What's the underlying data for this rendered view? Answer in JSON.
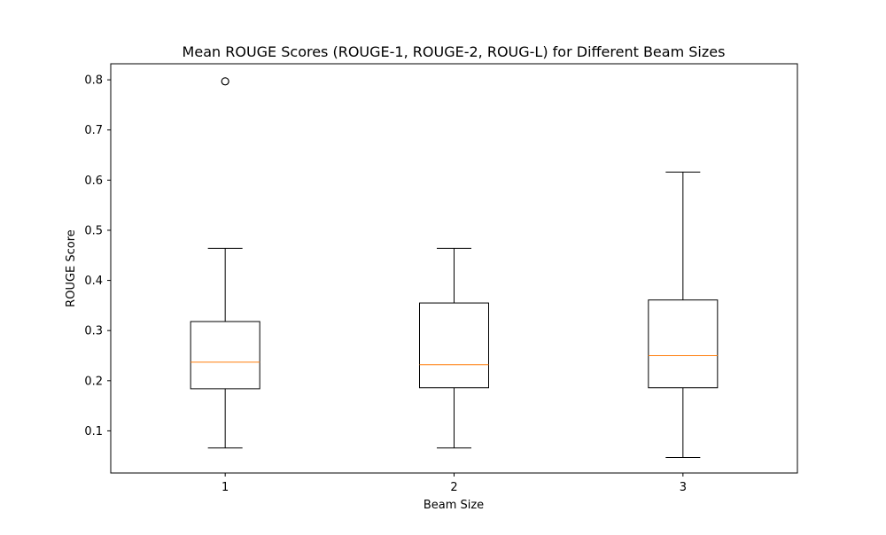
{
  "chart_data": {
    "type": "boxplot",
    "title": "Mean ROUGE Scores (ROUGE-1, ROUGE-2, ROUG-L) for Different Beam Sizes",
    "xlabel": "Beam Size",
    "ylabel": "ROUGE Score",
    "categories": [
      "1",
      "2",
      "3"
    ],
    "ylim": [
      0.016,
      0.832
    ],
    "yticks": [
      0.1,
      0.2,
      0.3,
      0.4,
      0.5,
      0.6,
      0.7,
      0.8
    ],
    "ytick_labels": [
      "0.1",
      "0.2",
      "0.3",
      "0.4",
      "0.5",
      "0.6",
      "0.7",
      "0.8"
    ],
    "grid": false,
    "boxes": [
      {
        "category": "1",
        "whisker_low": 0.066,
        "q1": 0.184,
        "median": 0.237,
        "q3": 0.318,
        "whisker_high": 0.464,
        "outliers": [
          0.797
        ]
      },
      {
        "category": "2",
        "whisker_low": 0.066,
        "q1": 0.186,
        "median": 0.232,
        "q3": 0.355,
        "whisker_high": 0.464,
        "outliers": []
      },
      {
        "category": "3",
        "whisker_low": 0.047,
        "q1": 0.186,
        "median": 0.25,
        "q3": 0.361,
        "whisker_high": 0.616,
        "outliers": []
      }
    ],
    "colors": {
      "box": "#000000",
      "median": "#ff7f0e",
      "background": "#ffffff"
    }
  }
}
